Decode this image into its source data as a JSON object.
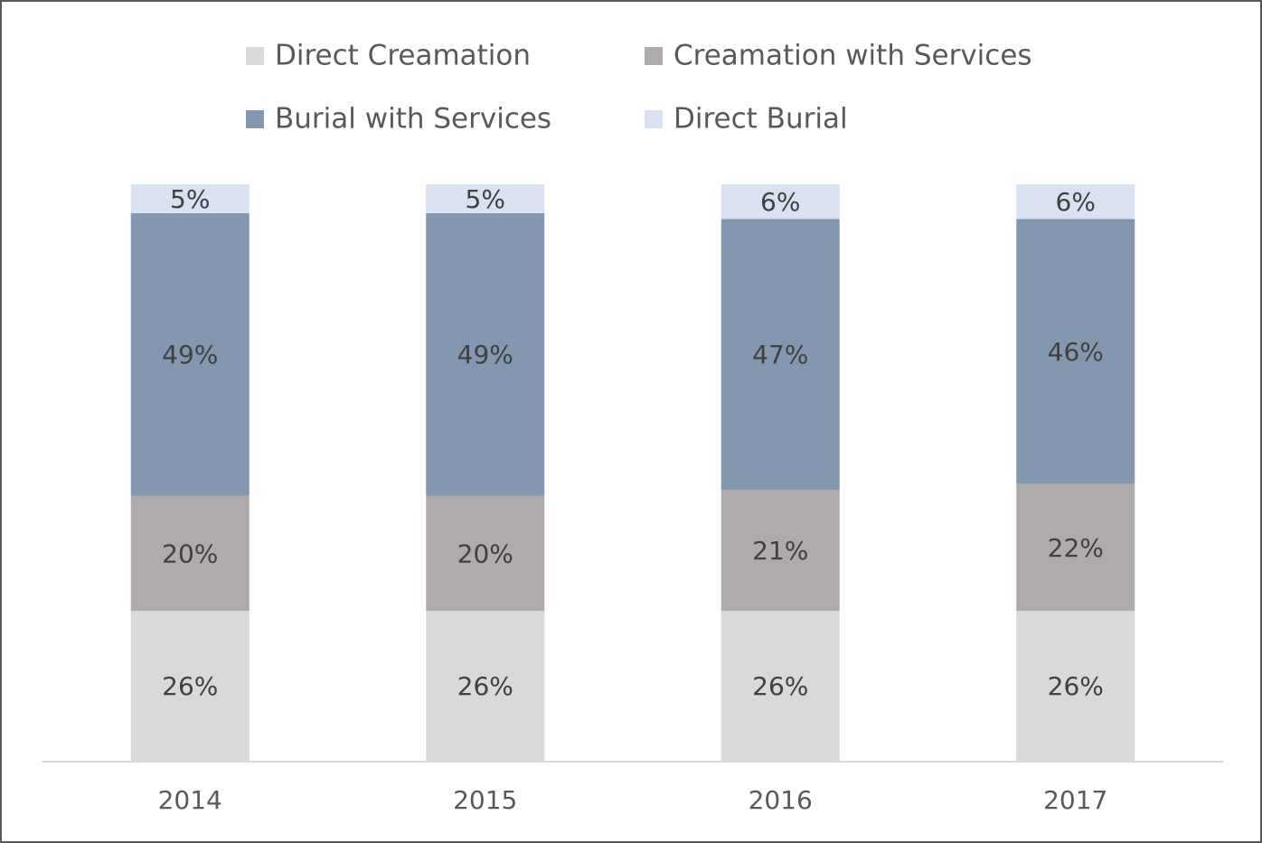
{
  "chart_data": {
    "type": "stacked_bar",
    "categories": [
      "2014",
      "2015",
      "2016",
      "2017"
    ],
    "series": [
      {
        "name": "Direct Creamation",
        "color": "#d9d9d9",
        "values": [
          26,
          26,
          26,
          26
        ],
        "value_labels": [
          "26%",
          "26%",
          "26%",
          "26%"
        ]
      },
      {
        "name": "Creamation with Services",
        "color": "#afabab",
        "values": [
          20,
          20,
          21,
          22
        ],
        "value_labels": [
          "20%",
          "20%",
          "21%",
          "22%"
        ]
      },
      {
        "name": "Burial with Services",
        "color": "#8497b0",
        "values": [
          49,
          49,
          47,
          46
        ],
        "value_labels": [
          "49%",
          "49%",
          "47%",
          "46%"
        ]
      },
      {
        "name": "Direct Burial",
        "color": "#d9e1f2",
        "values": [
          5,
          5,
          6,
          6
        ],
        "value_labels": [
          "5%",
          "5%",
          "6%",
          "6%"
        ]
      }
    ],
    "ylim": [
      0,
      100
    ],
    "legend": "top"
  }
}
